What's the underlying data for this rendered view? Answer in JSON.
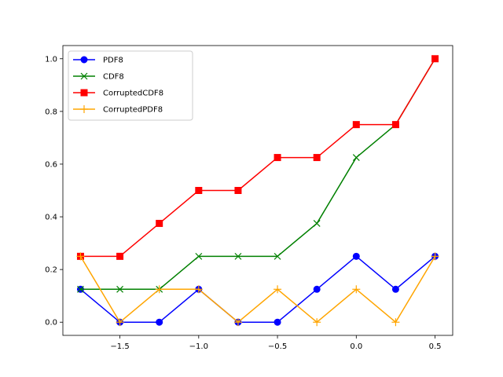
{
  "chart_data": {
    "type": "line",
    "title": "",
    "xlabel": "",
    "ylabel": "",
    "xlim": [
      -1.862,
      0.612
    ],
    "ylim": [
      -0.05,
      1.05
    ],
    "grid": false,
    "legend_position": "top-left",
    "x_ticks": [
      -1.5,
      -1.0,
      -0.5,
      0.0,
      0.5
    ],
    "x_tick_labels": [
      "−1.5",
      "−1.0",
      "−0.5",
      "0.0",
      "0.5"
    ],
    "y_ticks": [
      0.0,
      0.2,
      0.4,
      0.6,
      0.8,
      1.0
    ],
    "y_tick_labels": [
      "0.0",
      "0.2",
      "0.4",
      "0.6",
      "0.8",
      "1.0"
    ],
    "x": [
      -1.75,
      -1.5,
      -1.25,
      -1.0,
      -0.75,
      -0.5,
      -0.25,
      0.0,
      0.25,
      0.5
    ],
    "series": [
      {
        "name": "PDF8",
        "color": "#0000ff",
        "marker": "circle",
        "values": [
          0.125,
          0.0,
          0.0,
          0.125,
          0.0,
          0.0,
          0.125,
          0.25,
          0.125,
          0.25
        ]
      },
      {
        "name": "CDF8",
        "color": "#008000",
        "marker": "x",
        "values": [
          0.125,
          0.125,
          0.125,
          0.25,
          0.25,
          0.25,
          0.375,
          0.625,
          0.75,
          1.0
        ]
      },
      {
        "name": "CorruptedCDF8",
        "color": "#ff0000",
        "marker": "square",
        "values": [
          0.25,
          0.25,
          0.375,
          0.5,
          0.5,
          0.625,
          0.625,
          0.75,
          0.75,
          1.0
        ]
      },
      {
        "name": "CorruptedPDF8",
        "color": "#ffa500",
        "marker": "plus",
        "values": [
          0.25,
          0.0,
          0.125,
          0.125,
          0.0,
          0.125,
          0.0,
          0.125,
          0.0,
          0.25
        ]
      }
    ]
  }
}
